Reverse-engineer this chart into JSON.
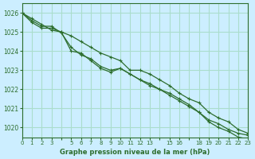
{
  "title": "Graphe pression niveau de la mer (hPa)",
  "bg_color": "#cceeff",
  "grid_color": "#aaddcc",
  "line_color": "#2d6e2d",
  "xlim": [
    0,
    23
  ],
  "ylim": [
    1019.5,
    1026.5
  ],
  "yticks": [
    1020,
    1021,
    1022,
    1023,
    1024,
    1025,
    1026
  ],
  "xticks": [
    0,
    1,
    2,
    3,
    4,
    5,
    6,
    7,
    8,
    9,
    10,
    11,
    12,
    13,
    14,
    15,
    16,
    17,
    18,
    19,
    20,
    21,
    22,
    23
  ],
  "xtick_labels": [
    "0",
    "1",
    "2",
    "3",
    "",
    "5",
    "6",
    "7",
    "8",
    "9",
    "10",
    "11",
    "12",
    "13",
    "",
    "15",
    "16",
    "",
    "18",
    "19",
    "20",
    "21",
    "22",
    "23"
  ],
  "series": [
    [
      1026.0,
      1025.7,
      1025.4,
      1025.1,
      1025.0,
      1024.8,
      1024.5,
      1024.2,
      1023.9,
      1023.7,
      1023.5,
      1023.0,
      1023.0,
      1022.8,
      1022.5,
      1022.2,
      1021.8,
      1021.5,
      1021.3,
      1020.8,
      1020.5,
      1020.3,
      1019.9,
      1019.7
    ],
    [
      1026.0,
      1025.6,
      1025.3,
      1025.3,
      1024.95,
      1024.2,
      1023.8,
      1023.6,
      1023.2,
      1023.0,
      1023.1,
      1022.8,
      1022.5,
      1022.3,
      1022.0,
      1021.8,
      1021.5,
      1021.2,
      1020.8,
      1020.4,
      1020.2,
      1019.9,
      1019.7,
      1019.6
    ],
    [
      1026.0,
      1025.5,
      1025.2,
      1025.2,
      1025.0,
      1024.0,
      1023.9,
      1023.5,
      1023.1,
      1022.9,
      1023.1,
      1022.8,
      1022.5,
      1022.2,
      1022.0,
      1021.7,
      1021.4,
      1021.1,
      1020.8,
      1020.3,
      1020.0,
      1019.8,
      1019.5,
      1019.4
    ]
  ]
}
